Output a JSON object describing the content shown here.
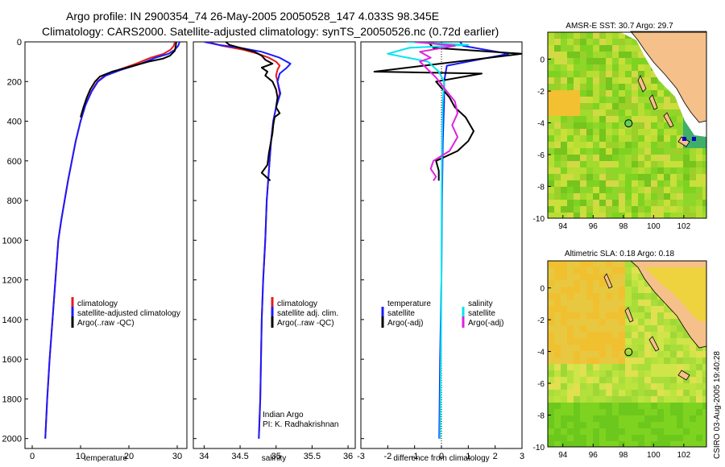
{
  "header": {
    "line1": "Argo profile: IN 2900354_74 26-May-2005 20050528_147 4.033S 98.345E",
    "line2": "Climatology: CARS2000. Satellite-adjusted climatology: synTS_20050526.nc (0.72d earlier)"
  },
  "side_stamp": "CSIRO 03-Aug-2005 19:40:28",
  "colors": {
    "climatology": "#e41a1c",
    "satellite": "#1a1aff",
    "argo": "#000000",
    "salinity_sat": "#00e5ee",
    "salinity_argo": "#e020e0",
    "land": "#f5c08a"
  },
  "depth_axis": {
    "ylim": [
      0,
      2050
    ],
    "ticks": [
      "0",
      "200",
      "400",
      "600",
      "800",
      "1000",
      "1200",
      "1400",
      "1600",
      "1800",
      "2000"
    ],
    "tick_values": [
      0,
      200,
      400,
      600,
      800,
      1000,
      1200,
      1400,
      1600,
      1800,
      2000
    ]
  },
  "chart_data": [
    {
      "type": "line",
      "name": "temperature-profile",
      "xlabel": "temperature",
      "xlim": [
        -1.5,
        32
      ],
      "xticks": [
        "0",
        "10",
        "20",
        "30"
      ],
      "xtick_values": [
        0,
        10,
        20,
        30
      ],
      "legend": [
        "climatology",
        "satellite-adjusted climatology",
        "Argo(..raw -QC)"
      ],
      "series": [
        {
          "name": "climatology",
          "color": "#e41a1c",
          "points": [
            [
              29.5,
              0
            ],
            [
              29.3,
              20
            ],
            [
              28.6,
              40
            ],
            [
              27.2,
              60
            ],
            [
              24.5,
              80
            ],
            [
              21.5,
              110
            ],
            [
              18,
              140
            ],
            [
              15,
              170
            ],
            [
              13.5,
              200
            ],
            [
              12.2,
              250
            ],
            [
              11,
              320
            ],
            [
              10,
              400
            ],
            [
              9,
              500
            ],
            [
              8.2,
              600
            ],
            [
              7.4,
              700
            ],
            [
              6.7,
              800
            ],
            [
              6,
              900
            ],
            [
              5.4,
              1000
            ],
            [
              4.8,
              1200
            ],
            [
              4.2,
              1400
            ],
            [
              3.6,
              1600
            ],
            [
              3.1,
              1800
            ],
            [
              2.7,
              2000
            ]
          ]
        },
        {
          "name": "satellite-adjusted climatology",
          "color": "#1a1aff",
          "points": [
            [
              30.5,
              0
            ],
            [
              30.2,
              20
            ],
            [
              29.5,
              40
            ],
            [
              28.2,
              60
            ],
            [
              25.5,
              80
            ],
            [
              22.5,
              110
            ],
            [
              18.5,
              140
            ],
            [
              15.2,
              170
            ],
            [
              13.6,
              200
            ],
            [
              12.3,
              250
            ],
            [
              11,
              320
            ],
            [
              10,
              400
            ],
            [
              9,
              500
            ],
            [
              8.2,
              600
            ],
            [
              7.4,
              700
            ],
            [
              6.7,
              800
            ],
            [
              6,
              900
            ],
            [
              5.4,
              1000
            ],
            [
              4.8,
              1200
            ],
            [
              4.2,
              1400
            ],
            [
              3.6,
              1600
            ],
            [
              3.1,
              1800
            ],
            [
              2.7,
              2000
            ]
          ]
        },
        {
          "name": "Argo(..raw -QC)",
          "color": "#000000",
          "points": [
            [
              29.8,
              0
            ],
            [
              29.7,
              20
            ],
            [
              29.5,
              45
            ],
            [
              28.5,
              70
            ],
            [
              27,
              85
            ],
            [
              24,
              100
            ],
            [
              21,
              120
            ],
            [
              16.5,
              150
            ],
            [
              14,
              175
            ],
            [
              13,
              200
            ],
            [
              12,
              240
            ],
            [
              11.3,
              280
            ],
            [
              10.6,
              330
            ],
            [
              10,
              380
            ]
          ]
        }
      ]
    },
    {
      "type": "line",
      "name": "salinity-profile",
      "xlabel": "salinity",
      "xlim": [
        33.85,
        36.1
      ],
      "xticks": [
        "34",
        "34.5",
        "35",
        "35.5",
        "36"
      ],
      "xtick_values": [
        34,
        34.5,
        35,
        35.5,
        36
      ],
      "legend": [
        "climatology",
        "satellite adj. clim.",
        "Argo(..raw -QC)"
      ],
      "annotation": [
        "Indian Argo",
        "PI: K. Radhakrishnan"
      ],
      "series": [
        {
          "name": "climatology",
          "color": "#e41a1c",
          "points": [
            [
              34.05,
              0
            ],
            [
              34.25,
              20
            ],
            [
              34.55,
              40
            ],
            [
              34.75,
              60
            ],
            [
              34.9,
              80
            ],
            [
              35,
              100
            ],
            [
              35.05,
              120
            ],
            [
              35.02,
              140
            ],
            [
              35.0,
              170
            ],
            [
              35.02,
              200
            ],
            [
              35.05,
              260
            ],
            [
              35.0,
              330
            ],
            [
              34.96,
              400
            ],
            [
              34.93,
              500
            ],
            [
              34.91,
              600
            ],
            [
              34.89,
              700
            ],
            [
              34.87,
              800
            ],
            [
              34.86,
              900
            ],
            [
              34.85,
              1000
            ],
            [
              34.82,
              1200
            ],
            [
              34.8,
              1400
            ],
            [
              34.79,
              1600
            ],
            [
              34.78,
              1800
            ],
            [
              34.76,
              2000
            ]
          ]
        },
        {
          "name": "satellite adj. clim.",
          "color": "#1a1aff",
          "points": [
            [
              34.0,
              0
            ],
            [
              34.2,
              15
            ],
            [
              34.5,
              30
            ],
            [
              34.8,
              50
            ],
            [
              35.05,
              80
            ],
            [
              35.2,
              110
            ],
            [
              35.15,
              130
            ],
            [
              35.05,
              160
            ],
            [
              35.02,
              200
            ],
            [
              35.06,
              260
            ],
            [
              35.0,
              330
            ],
            [
              34.96,
              400
            ],
            [
              34.93,
              500
            ],
            [
              34.91,
              600
            ],
            [
              34.89,
              700
            ],
            [
              34.87,
              800
            ],
            [
              34.86,
              900
            ],
            [
              34.85,
              1000
            ],
            [
              34.82,
              1200
            ],
            [
              34.8,
              1400
            ],
            [
              34.79,
              1600
            ],
            [
              34.78,
              1800
            ],
            [
              34.76,
              2000
            ]
          ]
        },
        {
          "name": "Argo(..raw -QC)",
          "color": "#000000",
          "points": [
            [
              34.3,
              0
            ],
            [
              34.35,
              15
            ],
            [
              34.5,
              30
            ],
            [
              34.7,
              50
            ],
            [
              34.8,
              70
            ],
            [
              34.85,
              90
            ],
            [
              34.95,
              110
            ],
            [
              34.8,
              130
            ],
            [
              34.88,
              150
            ],
            [
              34.85,
              170
            ],
            [
              34.95,
              200
            ],
            [
              35.0,
              240
            ],
            [
              35.02,
              280
            ],
            [
              35.0,
              330
            ],
            [
              35.05,
              360
            ],
            [
              34.98,
              380
            ],
            [
              34.96,
              420
            ],
            [
              34.95,
              460
            ],
            [
              34.93,
              500
            ],
            [
              34.9,
              560
            ],
            [
              34.88,
              620
            ],
            [
              34.8,
              660
            ],
            [
              34.92,
              700
            ]
          ]
        }
      ]
    },
    {
      "type": "line",
      "name": "difference-profile",
      "xlabel": "difference from climatology",
      "xlim": [
        -3,
        3
      ],
      "xticks": [
        "-3",
        "-2",
        "-1",
        "0",
        "1",
        "2",
        "3"
      ],
      "xtick_values": [
        -3,
        -2,
        -1,
        0,
        1,
        2,
        3
      ],
      "legend_left_title": "temperature",
      "legend_left": [
        "satellite",
        "Argo(-adj)"
      ],
      "legend_right_title": "salinity",
      "legend_right": [
        "satellite",
        "Argo(-adj)"
      ],
      "series": [
        {
          "name": "temperature satellite",
          "color": "#1a1aff",
          "points": [
            [
              0.7,
              0
            ],
            [
              0.8,
              20
            ],
            [
              2.5,
              60
            ],
            [
              0.2,
              120
            ],
            [
              0.1,
              200
            ],
            [
              0.1,
              300
            ],
            [
              0.05,
              500
            ],
            [
              0.02,
              800
            ],
            [
              0,
              1200
            ],
            [
              -0.05,
              1600
            ],
            [
              -0.08,
              2000
            ]
          ]
        },
        {
          "name": "temperature Argo(-adj)",
          "color": "#000000",
          "points": [
            [
              -0.5,
              0
            ],
            [
              -0.3,
              30
            ],
            [
              3,
              60
            ],
            [
              -2.5,
              150
            ],
            [
              1.5,
              160
            ],
            [
              -0.2,
              200
            ],
            [
              0.3,
              280
            ],
            [
              0.5,
              330
            ],
            [
              0.9,
              380
            ],
            [
              1.2,
              450
            ],
            [
              1.0,
              500
            ],
            [
              0.6,
              550
            ],
            [
              -0.2,
              600
            ],
            [
              -0.1,
              650
            ],
            [
              -0.1,
              700
            ]
          ]
        },
        {
          "name": "salinity satellite",
          "color": "#00e5ee",
          "points": [
            [
              -1.3,
              0
            ],
            [
              1.0,
              15
            ],
            [
              -1.2,
              30
            ],
            [
              -2.0,
              60
            ],
            [
              -0.5,
              100
            ],
            [
              -0.1,
              150
            ],
            [
              0.1,
              200
            ],
            [
              0.05,
              300
            ],
            [
              0.02,
              500
            ],
            [
              0.01,
              800
            ],
            [
              0,
              1200
            ],
            [
              -0.02,
              1600
            ],
            [
              -0.05,
              2000
            ]
          ]
        },
        {
          "name": "salinity Argo(-adj)",
          "color": "#e020e0",
          "points": [
            [
              -1.0,
              0
            ],
            [
              0.5,
              20
            ],
            [
              -0.8,
              50
            ],
            [
              -0.4,
              80
            ],
            [
              -0.8,
              100
            ],
            [
              -0.5,
              140
            ],
            [
              -0.2,
              180
            ],
            [
              0.2,
              250
            ],
            [
              0.5,
              300
            ],
            [
              0.6,
              360
            ],
            [
              0.4,
              420
            ],
            [
              0.6,
              480
            ],
            [
              0.3,
              550
            ],
            [
              -0.3,
              600
            ],
            [
              -0.4,
              640
            ],
            [
              -0.2,
              680
            ],
            [
              -0.3,
              700
            ]
          ]
        }
      ]
    }
  ],
  "maps": [
    {
      "title": "AMSR-E SST: 30.7 Argo: 29.7",
      "xticks": [
        "94",
        "96",
        "98",
        "100",
        "102"
      ],
      "xtick_values": [
        94,
        96,
        98,
        100,
        102
      ],
      "yticks": [
        "0",
        "-2",
        "-4",
        "-6",
        "-8",
        "-10"
      ],
      "ytick_values": [
        0,
        -2,
        -4,
        -6,
        -8,
        -10
      ],
      "lon_range": [
        93,
        103.5
      ],
      "lat_range": [
        -10,
        1.7
      ],
      "argo_lon": 98.345,
      "argo_lat": -4.033
    },
    {
      "title": "Altimetric SLA: 0.18 Argo: 0.18",
      "xticks": [
        "94",
        "96",
        "98",
        "100",
        "102"
      ],
      "xtick_values": [
        94,
        96,
        98,
        100,
        102
      ],
      "yticks": [
        "0",
        "-2",
        "-4",
        "-6",
        "-8",
        "-10"
      ],
      "ytick_values": [
        0,
        -2,
        -4,
        -6,
        -8,
        -10
      ],
      "lon_range": [
        93,
        103.5
      ],
      "lat_range": [
        -10,
        1.7
      ],
      "argo_lon": 98.345,
      "argo_lat": -4.033
    }
  ]
}
